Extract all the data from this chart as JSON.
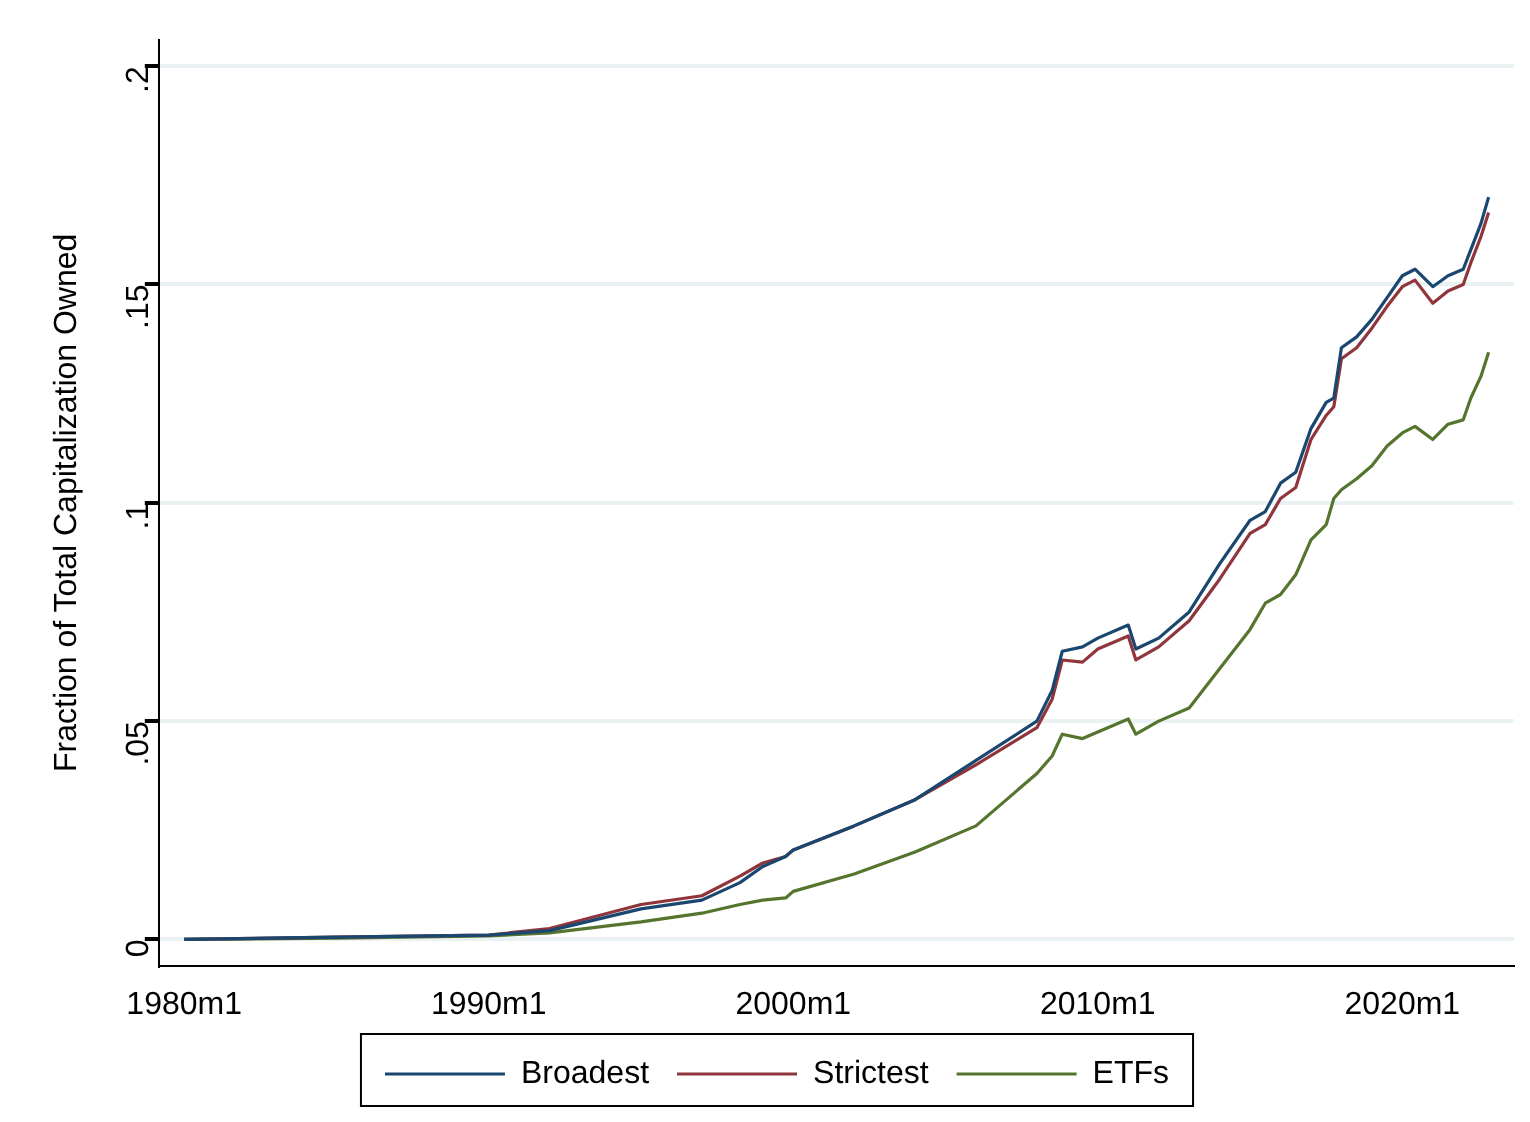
{
  "chart_data": {
    "type": "line",
    "ylabel": "Fraction of Total Capitalization Owned",
    "x": [
      "1980-01",
      "1985-01",
      "1990-01",
      "1992-01",
      "1995-01",
      "1997-01",
      "1998-04",
      "1999-01",
      "1999-10",
      "2000-01",
      "2002-01",
      "2004-01",
      "2006-01",
      "2008-01",
      "2008-07",
      "2008-11",
      "2009-07",
      "2010-01",
      "2011-01",
      "2011-04",
      "2012-01",
      "2013-01",
      "2014-01",
      "2015-01",
      "2015-07",
      "2016-01",
      "2016-07",
      "2017-01",
      "2017-07",
      "2017-10",
      "2018-01",
      "2018-07",
      "2019-01",
      "2019-07",
      "2020-01",
      "2020-06",
      "2021-01",
      "2021-07",
      "2022-01",
      "2022-04",
      "2022-08",
      "2022-11"
    ],
    "series": [
      {
        "name": "Broadest",
        "color": "#1a476f",
        "values": [
          0,
          0.0005,
          0.001,
          0.002,
          0.007,
          0.009,
          0.013,
          0.0167,
          0.019,
          0.0205,
          0.026,
          0.032,
          0.041,
          0.05,
          0.057,
          0.066,
          0.067,
          0.069,
          0.072,
          0.0665,
          0.069,
          0.075,
          0.086,
          0.096,
          0.098,
          0.1045,
          0.107,
          0.117,
          0.123,
          0.124,
          0.1355,
          0.138,
          0.142,
          0.147,
          0.152,
          0.1535,
          0.1495,
          0.152,
          0.1535,
          0.158,
          0.164,
          0.17
        ]
      },
      {
        "name": "Strictest",
        "color": "#90353b",
        "values": [
          0,
          0.0005,
          0.001,
          0.0025,
          0.008,
          0.01,
          0.0145,
          0.0175,
          0.019,
          0.0205,
          0.026,
          0.032,
          0.04,
          0.0485,
          0.055,
          0.064,
          0.0635,
          0.0665,
          0.0695,
          0.064,
          0.067,
          0.073,
          0.0825,
          0.093,
          0.095,
          0.101,
          0.1035,
          0.1145,
          0.12,
          0.122,
          0.133,
          0.1355,
          0.14,
          0.145,
          0.1495,
          0.151,
          0.1457,
          0.1485,
          0.15,
          0.155,
          0.161,
          0.1665
        ]
      },
      {
        "name": "ETFs",
        "color": "#55752f",
        "values": [
          0,
          0.0003,
          0.0008,
          0.0015,
          0.004,
          0.006,
          0.008,
          0.009,
          0.0095,
          0.011,
          0.015,
          0.02,
          0.026,
          0.038,
          0.042,
          0.047,
          0.046,
          0.0475,
          0.0505,
          0.047,
          0.05,
          0.053,
          0.062,
          0.071,
          0.077,
          0.079,
          0.0835,
          0.0915,
          0.095,
          0.101,
          0.103,
          0.1055,
          0.1085,
          0.113,
          0.116,
          0.1175,
          0.1145,
          0.118,
          0.119,
          0.124,
          0.129,
          0.1345
        ]
      }
    ],
    "xlim": [
      "1979-03",
      "2023-09"
    ],
    "xticks": [
      {
        "value": "1980-01",
        "label": "1980m1"
      },
      {
        "value": "1990-01",
        "label": "1990m1"
      },
      {
        "value": "2000-01",
        "label": "2000m1"
      },
      {
        "value": "2010-01",
        "label": "2010m1"
      },
      {
        "value": "2020-01",
        "label": "2020m1"
      }
    ],
    "ylim": [
      -0.006,
      0.206
    ],
    "yticks": [
      {
        "value": 0,
        "label": "0"
      },
      {
        "value": 0.05,
        "label": ".05"
      },
      {
        "value": 0.1,
        "label": ".1"
      },
      {
        "value": 0.15,
        "label": ".15"
      },
      {
        "value": 0.2,
        "label": ".2"
      }
    ],
    "grid": "y",
    "legend": "bottom",
    "marker": "none",
    "line_style": "solid"
  }
}
